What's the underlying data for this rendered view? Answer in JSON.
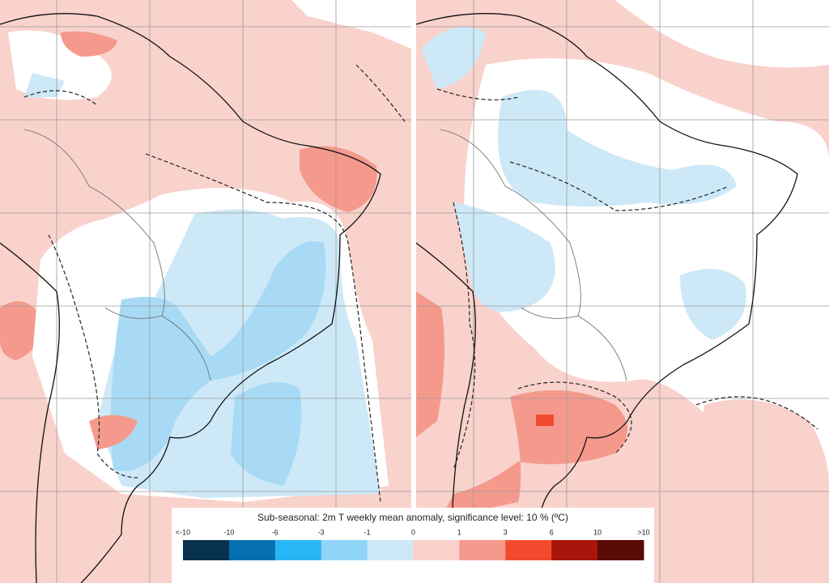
{
  "legend": {
    "title": "Sub-seasonal: 2m T weekly mean anomaly, significance level: 10 % (ºC)",
    "tick_labels": [
      "<-10",
      "-10",
      "-6",
      "-3",
      "-1",
      "0",
      "1",
      "3",
      "6",
      "10",
      ">10"
    ],
    "colors": [
      "#08304f",
      "#0570b0",
      "#29b6f6",
      "#90d4f7",
      "#cde9f8",
      "#fbd0cb",
      "#f5998d",
      "#f24a2f",
      "#a8150a",
      "#5a0a05"
    ]
  }
}
